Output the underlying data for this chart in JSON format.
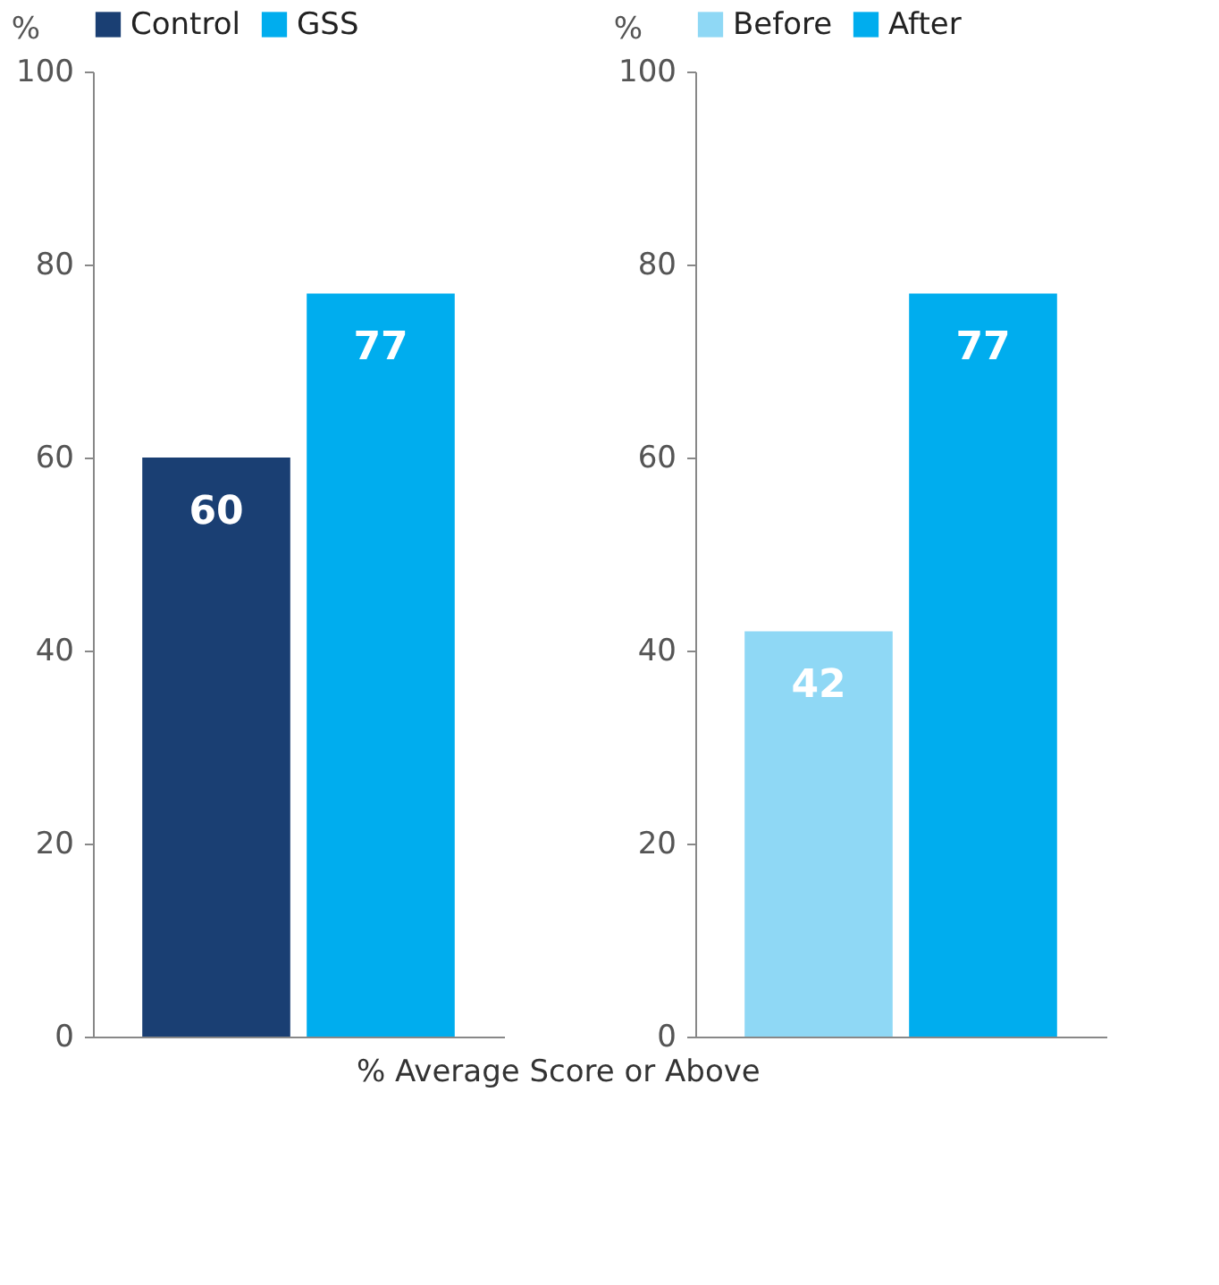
{
  "chart_data": [
    {
      "type": "bar",
      "ylabel": "%",
      "categories": [
        null
      ],
      "ylim": [
        0,
        100
      ],
      "yticks": [
        0,
        20,
        40,
        60,
        80,
        100
      ],
      "grid": false,
      "legend": "top",
      "data_labels": true,
      "annotations": [
        "% Average Score or Above"
      ],
      "series": [
        {
          "name": "Control",
          "color": "#1a3f73",
          "values": [
            60
          ]
        },
        {
          "name": "GSS",
          "color": "#00adee",
          "values": [
            77
          ]
        }
      ]
    },
    {
      "type": "bar",
      "ylabel": "%",
      "categories": [
        null
      ],
      "ylim": [
        0,
        100
      ],
      "yticks": [
        0,
        20,
        40,
        60,
        80,
        100
      ],
      "grid": false,
      "legend": "top",
      "data_labels": true,
      "series": [
        {
          "name": "Before",
          "color": "#8fd8f5",
          "values": [
            42
          ]
        },
        {
          "name": "After",
          "color": "#00adee",
          "values": [
            77
          ]
        }
      ]
    }
  ]
}
